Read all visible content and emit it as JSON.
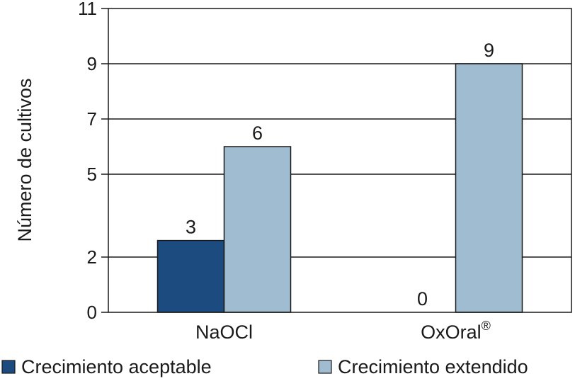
{
  "chart_data": {
    "type": "bar",
    "ylabel": "Número de cultivos",
    "xlabel": "",
    "ylim": [
      0,
      11
    ],
    "yticks": [
      0,
      2,
      5,
      7,
      9,
      11
    ],
    "grid": true,
    "legend_position": "bottom",
    "categories": [
      {
        "name": "NaOCl",
        "superscript": ""
      },
      {
        "name": "OxOral",
        "superscript": "®"
      }
    ],
    "series": [
      {
        "name": "Crecimiento aceptable",
        "color": "#1c4b80",
        "values": [
          2.6,
          0
        ],
        "labels": [
          "3",
          "0"
        ]
      },
      {
        "name": "Crecimiento extendido",
        "color": "#a0bcd0",
        "values": [
          6,
          9
        ],
        "labels": [
          "6",
          "9"
        ]
      }
    ]
  }
}
